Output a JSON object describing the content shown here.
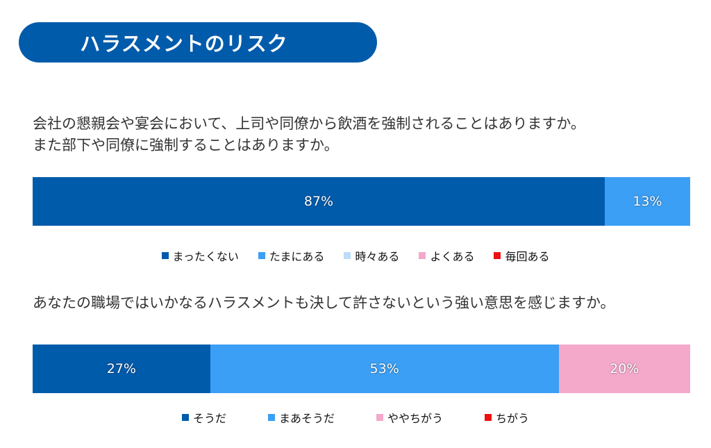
{
  "header": {
    "title": "ハラスメントのリスク"
  },
  "colors": {
    "dark_blue": "#005bab",
    "mid_blue": "#3a9ff5",
    "light_blue": "#bcdcf8",
    "pink": "#f4a9cb",
    "red": "#ee1111"
  },
  "chart_data": [
    {
      "type": "bar",
      "orientation": "horizontal-stacked-100",
      "title": "会社の懇親会や宴会において、上司や同僚から飲酒を強制されることはありますか。\nまた部下や同僚に強制することはありますか。",
      "categories": [
        "まったくない",
        "たまにある",
        "時々ある",
        "よくある",
        "毎回ある"
      ],
      "values": [
        87,
        13,
        0,
        0,
        0
      ],
      "labels": [
        "87%",
        "13%",
        "",
        "",
        ""
      ],
      "colors": [
        "#005bab",
        "#3a9ff5",
        "#bcdcf8",
        "#f4a9cb",
        "#ee1111"
      ],
      "legend": "bottom"
    },
    {
      "type": "bar",
      "orientation": "horizontal-stacked-100",
      "title": "あなたの職場ではいかなるハラスメントも決して許さないという強い意思を感じますか。",
      "categories": [
        "そうだ",
        "まあそうだ",
        "ややちがう",
        "ちがう"
      ],
      "values": [
        27,
        53,
        20,
        0
      ],
      "labels": [
        "27%",
        "53%",
        "20%",
        ""
      ],
      "colors": [
        "#005bab",
        "#3a9ff5",
        "#f4a9cb",
        "#ee1111"
      ],
      "legend": "bottom"
    }
  ]
}
